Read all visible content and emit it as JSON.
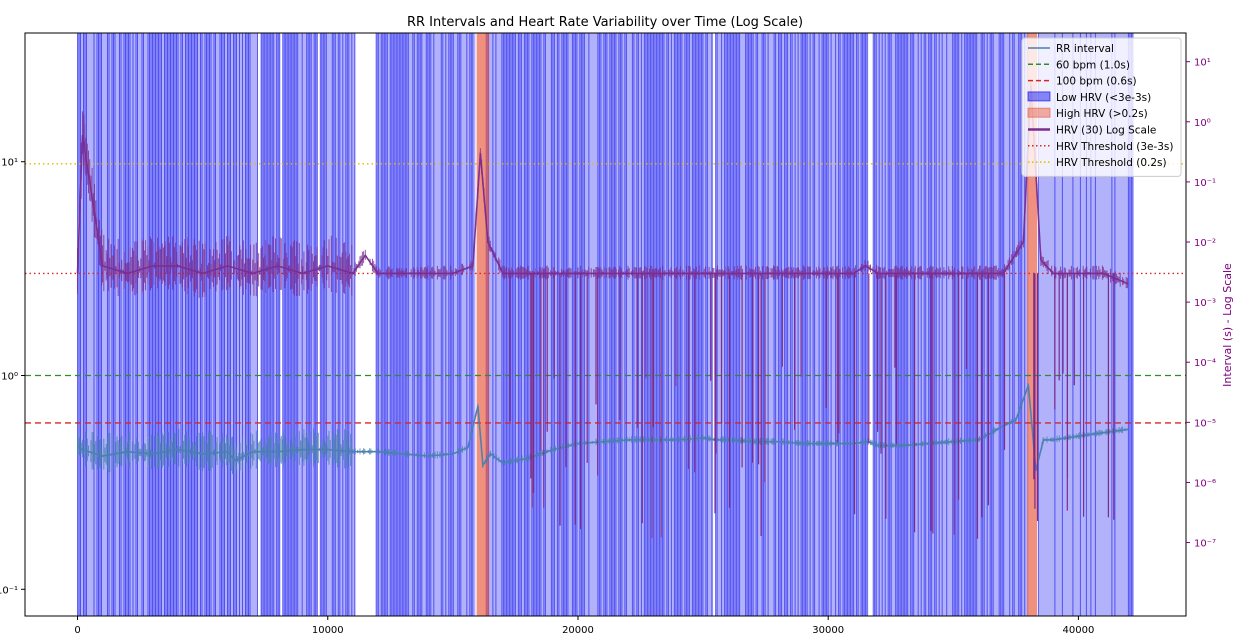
{
  "chart_data": {
    "type": "line",
    "title": "RR Intervals and Heart Rate Variability over Time (Log Scale)",
    "xlabel": "",
    "ylabel": "",
    "y2label": "Interval (s) - Log Scale",
    "xlim": [
      -2100,
      44300
    ],
    "xticks": [
      0,
      10000,
      20000,
      30000,
      40000
    ],
    "xtick_labels": [
      "0",
      "10000",
      "20000",
      "30000",
      "40000"
    ],
    "ylim": [
      0.075,
      40
    ],
    "yscale": "log",
    "yticks": [
      0.1,
      1,
      10
    ],
    "ytick_labels": [
      "10⁻¹",
      "10⁰",
      "10¹"
    ],
    "y2lim": [
      6e-09,
      30
    ],
    "y2scale": "log",
    "y2ticks": [
      1e-07,
      1e-06,
      1e-05,
      0.0001,
      0.001,
      0.01,
      0.1,
      1,
      10
    ],
    "y2tick_labels": [
      "10⁻⁷",
      "10⁻⁶",
      "10⁻⁵",
      "10⁻⁴",
      "10⁻³",
      "10⁻²",
      "10⁻¹",
      "10⁰",
      "10¹"
    ],
    "grid": false,
    "legend_position": "upper right",
    "colors": {
      "rr": "#4a7fb0",
      "hrv": "#7b2d8e",
      "low_hrv": "#0000ee",
      "high_hrv": "#e8553a",
      "line_60": "#2e8b2e",
      "line_100": "#d62728",
      "thr_low": "#d62728",
      "thr_high": "#e6b800",
      "y2_axis": "#800080"
    },
    "horizontal_lines": [
      {
        "label": "60 bpm (1.0s)",
        "y": 1.0,
        "axis": "left",
        "style": "dashed",
        "color_key": "line_60"
      },
      {
        "label": "100 bpm (0.6s)",
        "y": 0.6,
        "axis": "left",
        "style": "dashed",
        "color_key": "line_100"
      },
      {
        "label": "HRV Threshold (3e-3s)",
        "y": 0.003,
        "axis": "right",
        "style": "dotted",
        "color_key": "thr_low"
      },
      {
        "label": "HRV Threshold (0.2s)",
        "y": 0.2,
        "axis": "right",
        "style": "dotted",
        "color_key": "thr_high"
      }
    ],
    "low_hrv_regions": [
      [
        0,
        7200
      ],
      [
        7300,
        8100
      ],
      [
        8200,
        9600
      ],
      [
        9700,
        11100
      ],
      [
        11900,
        15900
      ],
      [
        16300,
        25400
      ],
      [
        25500,
        31600
      ],
      [
        31800,
        38000
      ],
      [
        38400,
        42200
      ]
    ],
    "high_hrv_regions": [
      [
        15950,
        16450
      ],
      [
        37950,
        38350
      ]
    ],
    "series": [
      {
        "name": "RR interval",
        "axis": "left",
        "x": [
          0,
          200,
          1000,
          2000,
          3000,
          4000,
          5000,
          6000,
          6300,
          7000,
          8000,
          9000,
          10000,
          11000,
          12000,
          13000,
          14000,
          15000,
          15600,
          16000,
          16200,
          16500,
          17000,
          18000,
          19000,
          20000,
          21000,
          22000,
          23000,
          24000,
          25000,
          25500,
          26000,
          27000,
          28000,
          29000,
          30000,
          31000,
          31600,
          32000,
          33000,
          34000,
          35000,
          36000,
          37000,
          37500,
          38000,
          38300,
          38600,
          39000,
          40000,
          41000,
          42000
        ],
        "y": [
          0.47,
          0.45,
          0.42,
          0.44,
          0.43,
          0.45,
          0.43,
          0.44,
          0.4,
          0.44,
          0.44,
          0.45,
          0.45,
          0.44,
          0.44,
          0.43,
          0.42,
          0.43,
          0.46,
          0.72,
          0.38,
          0.43,
          0.39,
          0.41,
          0.45,
          0.48,
          0.49,
          0.5,
          0.5,
          0.5,
          0.51,
          0.5,
          0.5,
          0.49,
          0.49,
          0.48,
          0.48,
          0.48,
          0.49,
          0.47,
          0.47,
          0.48,
          0.49,
          0.5,
          0.58,
          0.62,
          0.9,
          0.36,
          0.5,
          0.5,
          0.52,
          0.54,
          0.56
        ]
      },
      {
        "name": "HRV (30) Log Scale",
        "axis": "right",
        "x": [
          0,
          200,
          1000,
          2000,
          3000,
          4000,
          5000,
          6000,
          7000,
          8000,
          9000,
          10000,
          11000,
          11500,
          12000,
          13000,
          14000,
          15000,
          15800,
          16100,
          16400,
          17000,
          18000,
          19000,
          20000,
          21000,
          22000,
          23000,
          24000,
          25000,
          26000,
          27000,
          28000,
          29000,
          30000,
          31000,
          31500,
          32000,
          33000,
          34000,
          35000,
          36000,
          37000,
          37800,
          38100,
          38500,
          39000,
          40000,
          41000,
          42000
        ],
        "y": [
          0.003,
          0.6,
          0.004,
          0.003,
          0.004,
          0.004,
          0.003,
          0.004,
          0.003,
          0.004,
          0.003,
          0.004,
          0.003,
          0.006,
          0.003,
          0.003,
          0.003,
          0.003,
          0.004,
          0.3,
          0.01,
          0.003,
          0.003,
          0.003,
          0.003,
          0.003,
          0.003,
          0.003,
          0.003,
          0.003,
          0.003,
          0.003,
          0.003,
          0.003,
          0.003,
          0.003,
          0.004,
          0.003,
          0.003,
          0.003,
          0.003,
          0.003,
          0.003,
          0.01,
          4.0,
          0.005,
          0.003,
          0.003,
          0.003,
          0.002
        ]
      }
    ],
    "legend": [
      {
        "label": "RR interval",
        "kind": "line",
        "color_key": "rr"
      },
      {
        "label": "60 bpm (1.0s)",
        "kind": "dashed",
        "color_key": "line_60"
      },
      {
        "label": "100 bpm (0.6s)",
        "kind": "dashed",
        "color_key": "line_100"
      },
      {
        "label": "Low HRV (<3e-3s)",
        "kind": "patch",
        "color_key": "low_hrv"
      },
      {
        "label": "High HRV (>0.2s)",
        "kind": "patch",
        "color_key": "high_hrv"
      },
      {
        "label": "HRV (30) Log Scale",
        "kind": "line",
        "color_key": "hrv"
      },
      {
        "label": "HRV Threshold (3e-3s)",
        "kind": "dotted",
        "color_key": "thr_low"
      },
      {
        "label": "HRV Threshold (0.2s)",
        "kind": "dotted",
        "color_key": "thr_high"
      }
    ]
  }
}
